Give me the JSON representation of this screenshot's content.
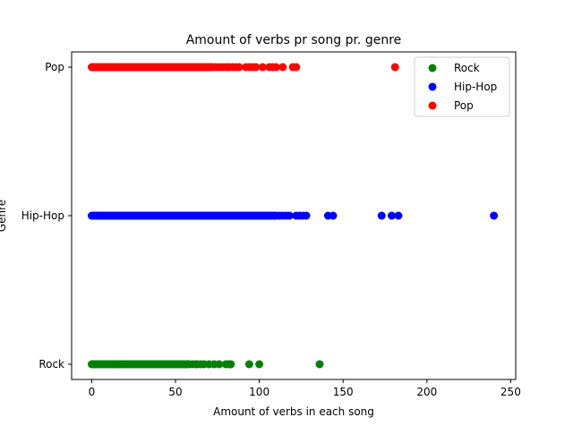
{
  "chart_data": {
    "type": "scatter",
    "title": "Amount of verbs pr song pr. genre",
    "xlabel": "Amount of verbs in each song",
    "ylabel": "Genre",
    "xlim": [
      -12,
      253
    ],
    "xticks": [
      0,
      50,
      100,
      150,
      200,
      250
    ],
    "categories": [
      "Rock",
      "Hip-Hop",
      "Pop"
    ],
    "grid": false,
    "legend_position": "top-right",
    "series": [
      {
        "name": "Rock",
        "category": "Rock",
        "color": "#008000",
        "x": [
          0,
          1,
          2,
          3,
          4,
          5,
          6,
          7,
          8,
          9,
          10,
          11,
          12,
          13,
          14,
          15,
          16,
          17,
          18,
          19,
          20,
          21,
          22,
          23,
          24,
          25,
          26,
          27,
          28,
          29,
          30,
          31,
          32,
          33,
          34,
          35,
          36,
          37,
          38,
          39,
          40,
          41,
          42,
          43,
          44,
          45,
          46,
          47,
          48,
          49,
          50,
          51,
          52,
          53,
          54,
          55,
          56,
          57,
          58,
          60,
          62,
          63,
          65,
          67,
          70,
          73,
          76,
          80,
          82,
          83,
          94,
          100,
          136
        ]
      },
      {
        "name": "Hip-Hop",
        "category": "Hip-Hop",
        "color": "#0000ff",
        "x": [
          0,
          1,
          2,
          3,
          4,
          5,
          6,
          7,
          8,
          9,
          10,
          11,
          12,
          13,
          14,
          15,
          16,
          17,
          18,
          19,
          20,
          21,
          22,
          23,
          24,
          25,
          26,
          27,
          28,
          29,
          30,
          31,
          32,
          33,
          34,
          35,
          36,
          37,
          38,
          39,
          40,
          41,
          42,
          43,
          44,
          45,
          46,
          47,
          48,
          49,
          50,
          51,
          52,
          53,
          54,
          55,
          56,
          57,
          58,
          59,
          60,
          61,
          62,
          63,
          64,
          65,
          66,
          67,
          68,
          69,
          70,
          71,
          72,
          73,
          74,
          75,
          76,
          77,
          78,
          79,
          80,
          81,
          82,
          83,
          84,
          85,
          86,
          87,
          88,
          89,
          90,
          91,
          92,
          93,
          94,
          95,
          96,
          97,
          98,
          99,
          100,
          101,
          102,
          103,
          104,
          105,
          106,
          107,
          108,
          109,
          110,
          112,
          114,
          116,
          118,
          122,
          124,
          126,
          128,
          141,
          144,
          173,
          179,
          183,
          240
        ]
      },
      {
        "name": "Pop",
        "category": "Pop",
        "color": "#ff0000",
        "x": [
          0,
          1,
          2,
          3,
          4,
          5,
          6,
          7,
          8,
          9,
          10,
          11,
          12,
          13,
          14,
          15,
          16,
          17,
          18,
          19,
          20,
          21,
          22,
          23,
          24,
          25,
          26,
          27,
          28,
          29,
          30,
          31,
          32,
          33,
          34,
          35,
          36,
          37,
          38,
          39,
          40,
          41,
          42,
          43,
          44,
          45,
          46,
          47,
          48,
          49,
          50,
          51,
          52,
          53,
          54,
          55,
          56,
          57,
          58,
          59,
          60,
          61,
          62,
          63,
          64,
          65,
          66,
          67,
          68,
          69,
          70,
          71,
          72,
          74,
          76,
          78,
          80,
          82,
          84,
          86,
          88,
          92,
          94,
          96,
          98,
          102,
          106,
          108,
          110,
          114,
          120,
          122,
          181
        ]
      }
    ]
  }
}
